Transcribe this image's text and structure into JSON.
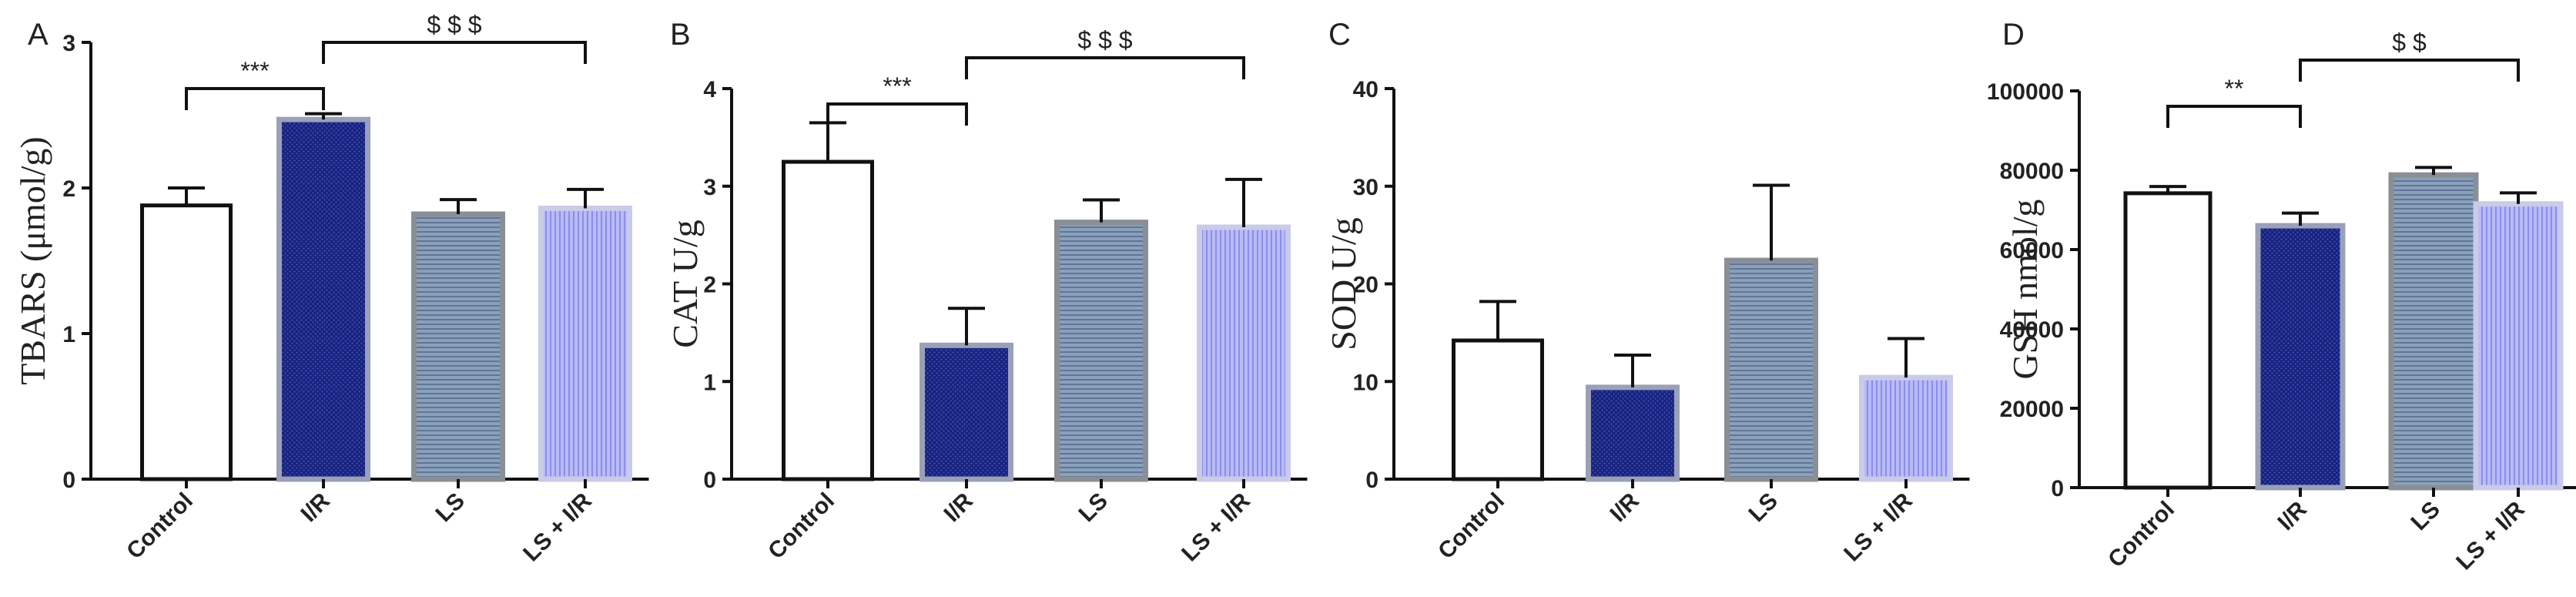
{
  "colors": {
    "axis": "#111111",
    "Control": "#ffffff",
    "I/R": "#1c2a8c",
    "LS": "#7f96b2",
    "LS + I/R": "#a7a9f2"
  },
  "chart_data": [
    {
      "type": "bar",
      "panel": "A",
      "ylabel": "TBARS (μmol/g)",
      "categories": [
        "Control",
        "I/R",
        "LS",
        "LS + I/R"
      ],
      "values": [
        1.88,
        2.47,
        1.82,
        1.86
      ],
      "errors": [
        0.12,
        0.04,
        0.1,
        0.13
      ],
      "ylim": [
        0,
        3
      ],
      "yticks": [
        0,
        1,
        2,
        3
      ],
      "ytick_labels": [
        "0",
        "1",
        "2",
        "3"
      ],
      "brackets": [
        {
          "from": 0,
          "to": 1,
          "label": "***"
        },
        {
          "from": 1,
          "to": 3,
          "label": "$ $ $"
        }
      ]
    },
    {
      "type": "bar",
      "panel": "B",
      "ylabel": "CAT U/g",
      "categories": [
        "Control",
        "I/R",
        "LS",
        "LS + I/R"
      ],
      "values": [
        3.25,
        1.37,
        2.63,
        2.58
      ],
      "errors": [
        0.4,
        0.38,
        0.23,
        0.49
      ],
      "ylim": [
        0,
        4
      ],
      "yticks": [
        0,
        1,
        2,
        3,
        4
      ],
      "ytick_labels": [
        "0",
        "1",
        "2",
        "3",
        "4"
      ],
      "brackets": [
        {
          "from": 0,
          "to": 1,
          "label": "***"
        },
        {
          "from": 1,
          "to": 3,
          "label": "$ $ $"
        }
      ]
    },
    {
      "type": "bar",
      "panel": "C",
      "ylabel": "SOD U/g",
      "categories": [
        "Control",
        "I/R",
        "LS",
        "LS + I/R"
      ],
      "values": [
        14.2,
        9.4,
        22.4,
        10.4
      ],
      "errors": [
        4.0,
        3.3,
        7.7,
        4.0
      ],
      "ylim": [
        0,
        40
      ],
      "yticks": [
        0,
        10,
        20,
        30,
        40
      ],
      "ytick_labels": [
        "0",
        "10",
        "20",
        "30",
        "40"
      ],
      "brackets": []
    },
    {
      "type": "bar",
      "panel": "D",
      "ylabel": "GSH nmol/g",
      "categories": [
        "Control",
        "I/R",
        "LS",
        "LS + I/R"
      ],
      "values": [
        74200,
        66000,
        78800,
        71500
      ],
      "errors": [
        1700,
        3200,
        1900,
        2800
      ],
      "ylim": [
        0,
        100000
      ],
      "yticks": [
        0,
        20000,
        40000,
        60000,
        80000,
        100000
      ],
      "ytick_labels": [
        "0",
        "20000",
        "40000",
        "60000",
        "80000",
        "100000"
      ],
      "brackets": [
        {
          "from": 0,
          "to": 1,
          "label": "**"
        },
        {
          "from": 1,
          "to": 3,
          "label": "$ $"
        }
      ]
    }
  ]
}
